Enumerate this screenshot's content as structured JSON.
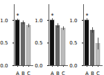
{
  "chart_data": [
    {
      "type": "bar",
      "categories": [
        "A",
        "B",
        "C"
      ],
      "values": [
        1.0,
        0.95,
        0.88
      ],
      "errors": [
        0.03,
        0.04,
        0.04
      ],
      "colors": [
        "#111111",
        "#666666",
        "#bbbbbb"
      ],
      "ylim": [
        0,
        1.35
      ],
      "yticks": [
        {
          "value": 0,
          "label": "0.0"
        },
        {
          "value": 0.5,
          "label": "0.5"
        },
        {
          "value": 1.0,
          "label": "1.0"
        }
      ],
      "annotations": [
        {
          "text": "*",
          "category": "A"
        }
      ]
    },
    {
      "type": "bar",
      "categories": [
        "A",
        "B",
        "C"
      ],
      "values": [
        1.0,
        0.88,
        0.82
      ],
      "errors": [
        0.04,
        0.05,
        0.04
      ],
      "colors": [
        "#111111",
        "#666666",
        "#bbbbbb"
      ],
      "ylim": [
        0,
        1.35
      ],
      "yticks": [
        {
          "value": 0,
          "label": "0.0"
        },
        {
          "value": 0.5,
          "label": "0.5"
        },
        {
          "value": 1.0,
          "label": "1.0"
        }
      ],
      "annotations": [
        {
          "text": "*",
          "category": "A"
        }
      ]
    },
    {
      "type": "bar",
      "categories": [
        "A",
        "B",
        "C"
      ],
      "values": [
        1.0,
        0.78,
        0.48
      ],
      "errors": [
        0.04,
        0.06,
        0.13
      ],
      "colors": [
        "#111111",
        "#666666",
        "#bbbbbb"
      ],
      "ylim": [
        0,
        1.35
      ],
      "yticks": [
        {
          "value": 0,
          "label": "0.0"
        },
        {
          "value": 0.5,
          "label": "0.5"
        },
        {
          "value": 1.0,
          "label": "1.0"
        }
      ],
      "annotations": [
        {
          "text": "*",
          "category": "A"
        }
      ]
    }
  ]
}
